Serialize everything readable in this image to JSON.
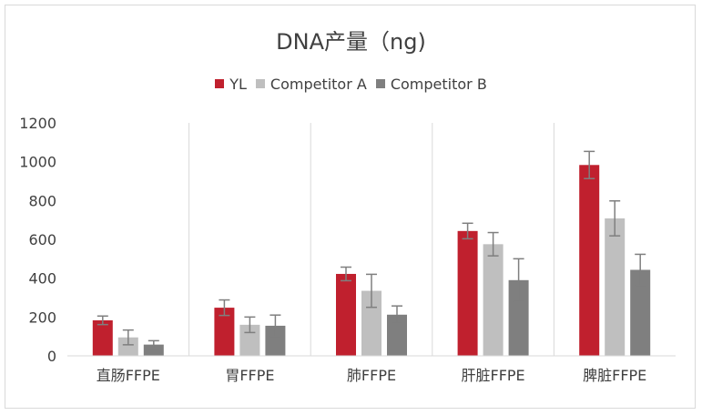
{
  "chart_data": {
    "type": "bar",
    "title": "DNA产量（ng)",
    "categories": [
      "直肠FFPE",
      "胃FFPE",
      "肺FFPE",
      "肝脏FFPE",
      "脾脏FFPE"
    ],
    "series": [
      {
        "name": "YL",
        "color": "#c0202e",
        "values": [
          183,
          248,
          422,
          643,
          983
        ],
        "errors": [
          22,
          40,
          35,
          40,
          70
        ]
      },
      {
        "name": "Competitor A",
        "color": "#bfbfbf",
        "values": [
          95,
          160,
          335,
          575,
          708
        ],
        "errors": [
          38,
          40,
          85,
          60,
          90
        ]
      },
      {
        "name": "Competitor B",
        "color": "#7f7f7f",
        "values": [
          58,
          155,
          212,
          390,
          443
        ],
        "errors": [
          20,
          55,
          45,
          110,
          80
        ]
      }
    ],
    "ylim": [
      0,
      1200
    ],
    "yticks": [
      "0",
      "200",
      "400",
      "600",
      "800",
      "1000",
      "1200"
    ],
    "grid": false,
    "legend_position": "top"
  }
}
